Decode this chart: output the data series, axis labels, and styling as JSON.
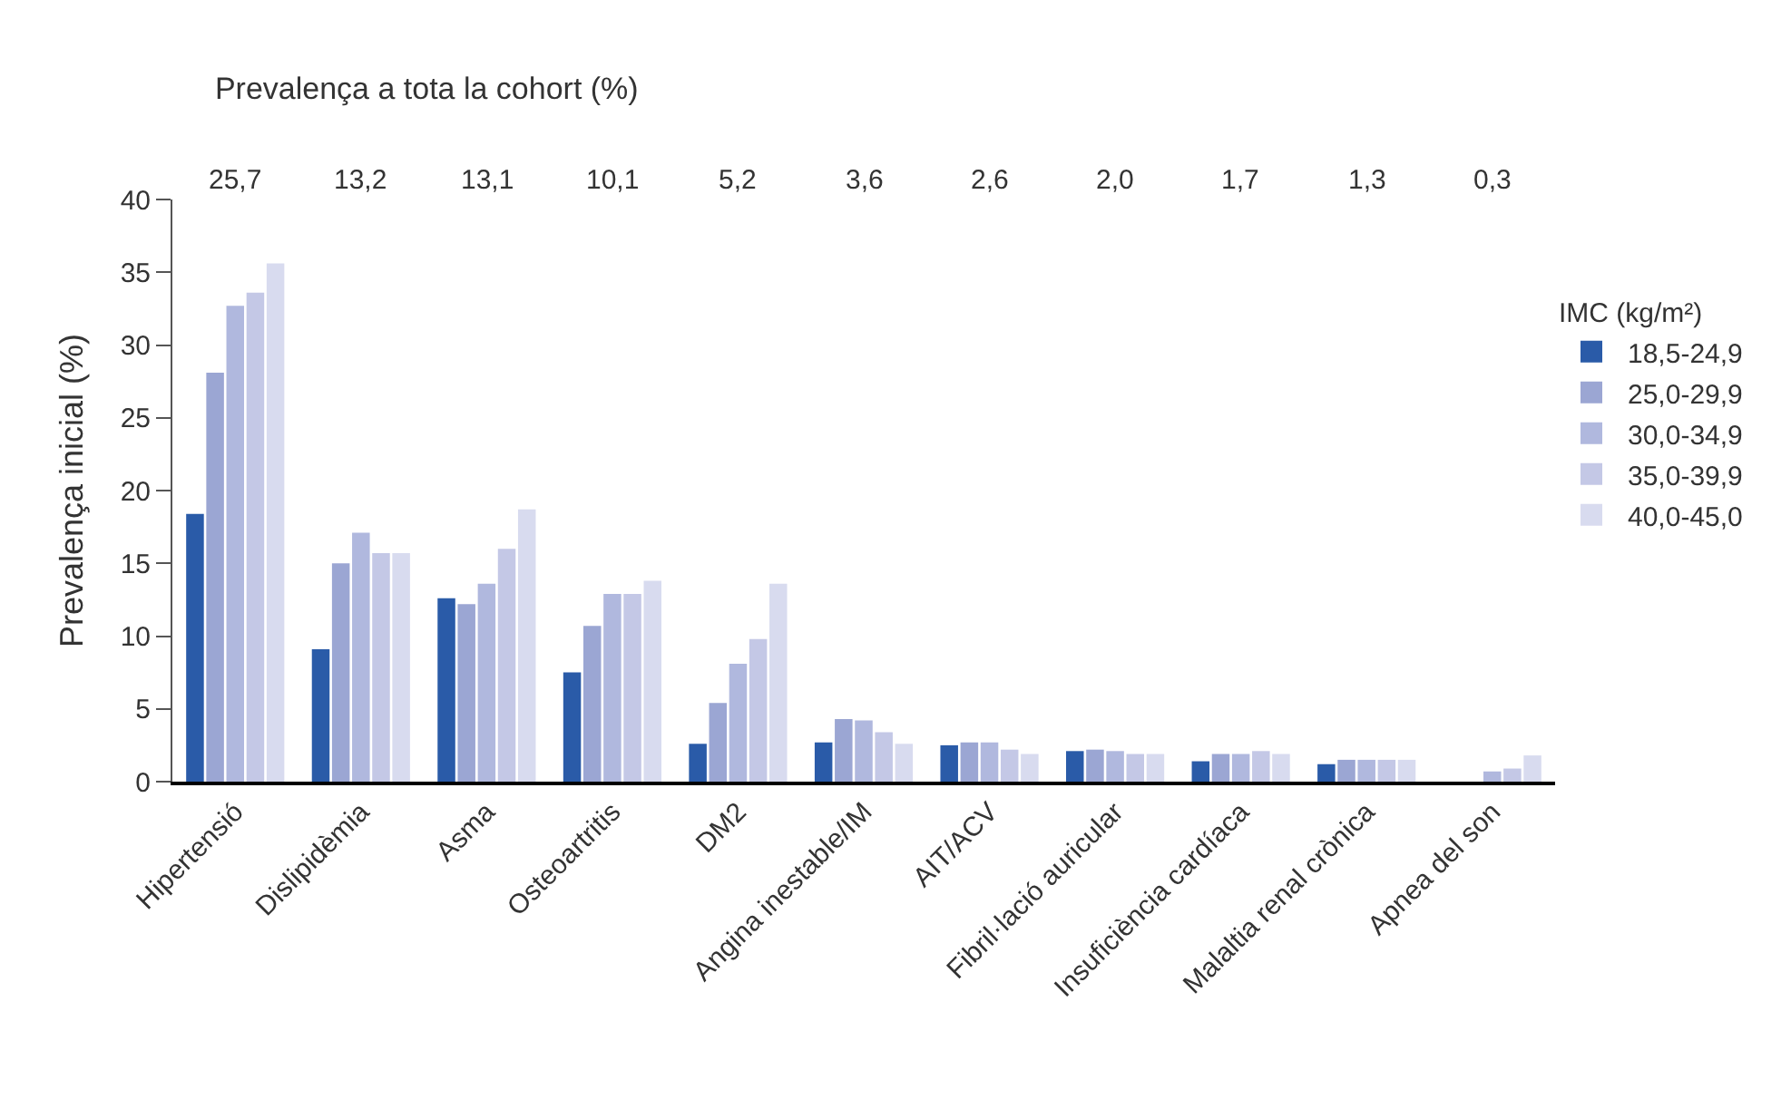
{
  "chart_data": {
    "type": "bar",
    "title": "Prevalença a tota la cohort (%)",
    "ylabel": "Prevalença inicial (%)",
    "legend_title": "IMC (kg/m²)",
    "categories": [
      "Hipertensió",
      "Dislipidèmia",
      "Asma",
      "Osteoartritis",
      "DM2",
      "Angina inestable/IM",
      "AIT/ACV",
      "Fibril·lació auricular",
      "Insuficiència cardíaca",
      "Malaltia renal crònica",
      "Apnea del son"
    ],
    "series": [
      {
        "name": "18,5-24,9",
        "color": "#2a5ba8",
        "values": [
          18.4,
          9.1,
          12.6,
          7.5,
          2.6,
          2.7,
          2.5,
          2.1,
          1.4,
          1.2,
          0
        ]
      },
      {
        "name": "25,0-29,9",
        "color": "#9ba6d3",
        "values": [
          28.1,
          15.0,
          12.2,
          10.7,
          5.4,
          4.3,
          2.7,
          2.2,
          1.9,
          1.5,
          0
        ]
      },
      {
        "name": "30,0-34,9",
        "color": "#b0b8de",
        "values": [
          32.7,
          17.1,
          13.6,
          12.9,
          8.1,
          4.2,
          2.7,
          2.1,
          1.9,
          1.5,
          0.7
        ]
      },
      {
        "name": "35,0-39,9",
        "color": "#c4c8e6",
        "values": [
          33.6,
          15.7,
          16.0,
          12.9,
          9.8,
          3.4,
          2.2,
          1.9,
          2.1,
          1.5,
          0.9
        ]
      },
      {
        "name": "40,0-45,0",
        "color": "#d8dbef",
        "values": [
          35.6,
          15.7,
          18.7,
          13.8,
          13.6,
          2.6,
          1.9,
          1.9,
          1.9,
          1.5,
          1.8
        ]
      }
    ],
    "ylim": [
      0,
      40
    ],
    "yticks": [
      0,
      5,
      10,
      15,
      20,
      25,
      30,
      35,
      40
    ],
    "legend": "right",
    "annotations": [
      "25,7",
      "13,2",
      "13,1",
      "10,1",
      "5,2",
      "3,6",
      "2,6",
      "2,0",
      "1,7",
      "1,3",
      "0,3"
    ]
  }
}
